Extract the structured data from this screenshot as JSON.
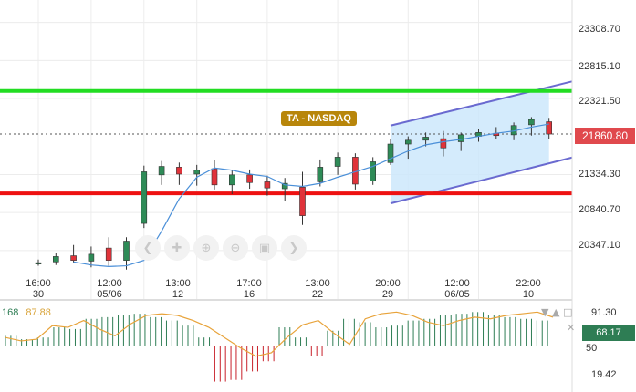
{
  "chart_data": {
    "type": "candlestick",
    "instrument_tag": "TA - NASDAQ",
    "price_axis_ticks": [
      "23308.70",
      "22815.10",
      "22321.50",
      "21334.30",
      "20840.70",
      "20347.10"
    ],
    "last_price": "21860.80",
    "ylim": [
      20050,
      23600
    ],
    "horizontal_lines": [
      {
        "price": 22420,
        "color": "#22dd22"
      },
      {
        "price": 21090,
        "color": "#ee1111"
      }
    ],
    "channel": {
      "upper": [
        [
          20,
          21970
        ],
        [
          29,
          22470
        ]
      ],
      "lower": [
        [
          20,
          20960
        ],
        [
          29,
          21480
        ]
      ],
      "fill": "#cce8fb",
      "stroke": "#6a6ad0"
    },
    "x_labels": [
      {
        "i": 0,
        "top": "16:00",
        "bottom": "30"
      },
      {
        "i": 3,
        "top": "12:00",
        "bottom": "05/06"
      },
      {
        "i": 6,
        "top": "13:00",
        "bottom": "12"
      },
      {
        "i": 9,
        "top": "17:00",
        "bottom": "16"
      },
      {
        "i": 13,
        "top": "13:00",
        "bottom": "22"
      },
      {
        "i": 17,
        "top": "20:00",
        "bottom": "29"
      },
      {
        "i": 21,
        "top": "12:00",
        "bottom": "06/05"
      },
      {
        "i": 25,
        "top": "22:00",
        "bottom": "10"
      }
    ],
    "candles": [
      {
        "t": 0,
        "o": 20180,
        "h": 20230,
        "l": 20150,
        "c": 20190
      },
      {
        "t": 1,
        "o": 20200,
        "h": 20320,
        "l": 20160,
        "c": 20270
      },
      {
        "t": 2,
        "o": 20280,
        "h": 20420,
        "l": 20190,
        "c": 20220
      },
      {
        "t": 3,
        "o": 20210,
        "h": 20400,
        "l": 20130,
        "c": 20300
      },
      {
        "t": 4,
        "o": 20380,
        "h": 20520,
        "l": 20150,
        "c": 20220
      },
      {
        "t": 5,
        "o": 20220,
        "h": 20520,
        "l": 20100,
        "c": 20470
      },
      {
        "t": 6,
        "o": 20700,
        "h": 21450,
        "l": 20640,
        "c": 21370
      },
      {
        "t": 7,
        "o": 21330,
        "h": 21510,
        "l": 21200,
        "c": 21440
      },
      {
        "t": 8,
        "o": 21430,
        "h": 21490,
        "l": 21200,
        "c": 21340
      },
      {
        "t": 9,
        "o": 21340,
        "h": 21460,
        "l": 21190,
        "c": 21390
      },
      {
        "t": 10,
        "o": 21410,
        "h": 21520,
        "l": 21140,
        "c": 21200
      },
      {
        "t": 11,
        "o": 21200,
        "h": 21390,
        "l": 21080,
        "c": 21330
      },
      {
        "t": 12,
        "o": 21330,
        "h": 21400,
        "l": 21150,
        "c": 21230
      },
      {
        "t": 13,
        "o": 21240,
        "h": 21320,
        "l": 21060,
        "c": 21160
      },
      {
        "t": 14,
        "o": 21150,
        "h": 21290,
        "l": 20990,
        "c": 21220
      },
      {
        "t": 15,
        "o": 21170,
        "h": 21370,
        "l": 20680,
        "c": 20800
      },
      {
        "t": 16,
        "o": 21240,
        "h": 21530,
        "l": 21180,
        "c": 21430
      },
      {
        "t": 17,
        "o": 21440,
        "h": 21620,
        "l": 21330,
        "c": 21560
      },
      {
        "t": 18,
        "o": 21560,
        "h": 21610,
        "l": 21140,
        "c": 21210
      },
      {
        "t": 19,
        "o": 21250,
        "h": 21560,
        "l": 21200,
        "c": 21500
      },
      {
        "t": 20,
        "o": 21490,
        "h": 21800,
        "l": 21460,
        "c": 21730
      },
      {
        "t": 21,
        "o": 21730,
        "h": 21830,
        "l": 21540,
        "c": 21780
      },
      {
        "t": 22,
        "o": 21780,
        "h": 21880,
        "l": 21700,
        "c": 21820
      },
      {
        "t": 23,
        "o": 21800,
        "h": 21900,
        "l": 21570,
        "c": 21680
      },
      {
        "t": 24,
        "o": 21760,
        "h": 21880,
        "l": 21640,
        "c": 21850
      },
      {
        "t": 25,
        "o": 21830,
        "h": 21920,
        "l": 21760,
        "c": 21880
      },
      {
        "t": 26,
        "o": 21870,
        "h": 21950,
        "l": 21800,
        "c": 21840
      },
      {
        "t": 27,
        "o": 21850,
        "h": 22010,
        "l": 21780,
        "c": 21970
      },
      {
        "t": 28,
        "o": 21980,
        "h": 22080,
        "l": 21840,
        "c": 22050
      },
      {
        "t": 29,
        "o": 22020,
        "h": 22070,
        "l": 21800,
        "c": 21860
      }
    ],
    "ma_line": [
      [
        2,
        20200
      ],
      [
        3,
        20160
      ],
      [
        4,
        20140
      ],
      [
        5,
        20150
      ],
      [
        6,
        20220
      ],
      [
        7,
        20600
      ],
      [
        8,
        21020
      ],
      [
        9,
        21300
      ],
      [
        10,
        21420
      ],
      [
        11,
        21390
      ],
      [
        12,
        21340
      ],
      [
        13,
        21310
      ],
      [
        14,
        21200
      ],
      [
        15,
        21180
      ],
      [
        16,
        21220
      ],
      [
        17,
        21300
      ],
      [
        18,
        21370
      ],
      [
        19,
        21440
      ],
      [
        20,
        21540
      ],
      [
        21,
        21640
      ],
      [
        22,
        21720
      ],
      [
        23,
        21760
      ],
      [
        24,
        21790
      ],
      [
        25,
        21830
      ],
      [
        26,
        21870
      ],
      [
        27,
        21900
      ],
      [
        28,
        21950
      ],
      [
        29,
        21990
      ]
    ],
    "oscillator": {
      "legend": [
        "168",
        "87.88"
      ],
      "axis_ticks": [
        "91.30",
        "50",
        "19.42"
      ],
      "value": "68.17",
      "ylim": [
        0,
        100
      ],
      "zero": 50,
      "bars": [
        62,
        58,
        60,
        72,
        70,
        82,
        84,
        86,
        88,
        84,
        80,
        74,
        60,
        8,
        10,
        20,
        32,
        72,
        60,
        38,
        68,
        82,
        78,
        72,
        74,
        80,
        82,
        86,
        88,
        90,
        86,
        84,
        82,
        80
      ],
      "line": [
        60,
        56,
        58,
        74,
        72,
        80,
        70,
        62,
        76,
        86,
        88,
        86,
        80,
        72,
        60,
        48,
        38,
        42,
        60,
        75,
        80,
        65,
        52,
        82,
        88,
        90,
        86,
        78,
        74,
        80,
        84,
        82,
        86,
        88,
        90,
        84
      ]
    }
  },
  "nav_icons": [
    "scroll-left-icon",
    "pan-icon",
    "zoom-in-icon",
    "zoom-out-icon",
    "fit-icon",
    "scroll-right-icon"
  ],
  "osc_controls": [
    "chevron-down-icon",
    "chevron-up-icon",
    "maximize-icon",
    "close-icon"
  ]
}
